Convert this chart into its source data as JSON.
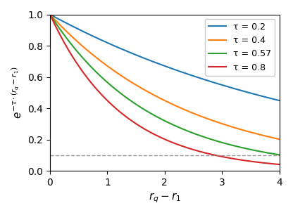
{
  "tau_values": [
    0.2,
    0.4,
    0.57,
    0.8
  ],
  "tau_labels": [
    "τ = 0.2",
    "τ = 0.4",
    "τ = 0.57",
    "τ = 0.8"
  ],
  "colors": [
    "#1f77b4",
    "#ff7f0e",
    "#2ca02c",
    "#d62728"
  ],
  "x_min": 0,
  "x_max": 4,
  "y_min": 0.0,
  "y_max": 1.0,
  "dashed_line_y": 0.1,
  "x_ticks": [
    0,
    1,
    2,
    3,
    4
  ],
  "y_ticks": [
    0.0,
    0.2,
    0.4,
    0.6,
    0.8,
    1.0
  ],
  "num_points": 500
}
